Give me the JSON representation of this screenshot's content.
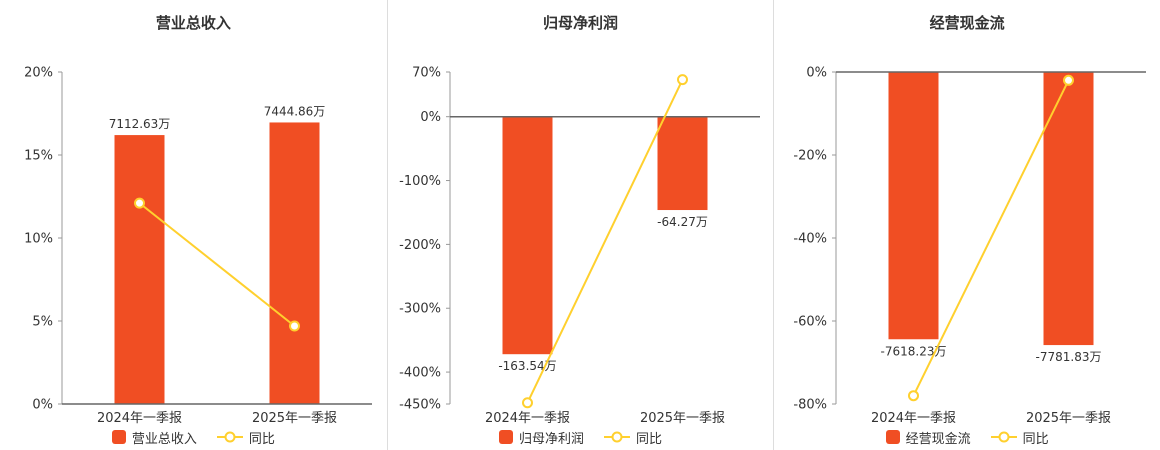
{
  "chart_data": [
    {
      "type": "bar",
      "title": "营业总收入",
      "categories": [
        "2024年一季报",
        "2025年一季报"
      ],
      "bar_series": {
        "name": "营业总收入",
        "values_wan": [
          7112.63,
          7444.86
        ],
        "labels": [
          "7112.63万",
          "7444.86万"
        ],
        "display_pct": [
          16.2,
          16.96
        ]
      },
      "line_series": {
        "name": "同比",
        "values_pct": [
          12.1,
          4.7
        ]
      },
      "y_axis": {
        "min": 0,
        "max": 20,
        "ticks": [
          {
            "v": 20,
            "label": "20%"
          },
          {
            "v": 15,
            "label": "15%"
          },
          {
            "v": 10,
            "label": "10%"
          },
          {
            "v": 5,
            "label": "5%"
          },
          {
            "v": 0,
            "label": "0%"
          }
        ]
      },
      "colors": {
        "bar": "#f04e23",
        "line": "#ffd02e"
      },
      "legend_position": "bottom",
      "grid": false
    },
    {
      "type": "bar",
      "title": "归母净利润",
      "categories": [
        "2024年一季报",
        "2025年一季报"
      ],
      "bar_series": {
        "name": "归母净利润",
        "values_wan": [
          -163.54,
          -64.27
        ],
        "labels": [
          "-163.54万",
          "-64.27万"
        ],
        "display_pct": [
          -372,
          -146.2
        ]
      },
      "line_series": {
        "name": "同比",
        "values_pct": [
          -448,
          58
        ]
      },
      "y_axis": {
        "min": -450,
        "max": 70,
        "ticks": [
          {
            "v": 70,
            "label": "70%"
          },
          {
            "v": 0,
            "label": "0%"
          },
          {
            "v": -100,
            "label": "-100%"
          },
          {
            "v": -200,
            "label": "-200%"
          },
          {
            "v": -300,
            "label": "-300%"
          },
          {
            "v": -400,
            "label": "-400%"
          },
          {
            "v": -450,
            "label": "-450%"
          }
        ]
      },
      "colors": {
        "bar": "#f04e23",
        "line": "#ffd02e"
      },
      "legend_position": "bottom",
      "grid": false
    },
    {
      "type": "bar",
      "title": "经营现金流",
      "categories": [
        "2024年一季报",
        "2025年一季报"
      ],
      "bar_series": {
        "name": "经营现金流",
        "values_wan": [
          -7618.23,
          -7781.83
        ],
        "labels": [
          "-7618.23万",
          "-7781.83万"
        ],
        "display_pct": [
          -64.4,
          -65.8
        ]
      },
      "line_series": {
        "name": "同比",
        "values_pct": [
          -78,
          -2
        ]
      },
      "y_axis": {
        "min": -80,
        "max": 0,
        "ticks": [
          {
            "v": 0,
            "label": "0%"
          },
          {
            "v": -20,
            "label": "-20%"
          },
          {
            "v": -40,
            "label": "-40%"
          },
          {
            "v": -60,
            "label": "-60%"
          },
          {
            "v": -80,
            "label": "-80%"
          }
        ]
      },
      "colors": {
        "bar": "#f04e23",
        "line": "#ffd02e"
      },
      "legend_position": "bottom",
      "grid": false
    }
  ]
}
